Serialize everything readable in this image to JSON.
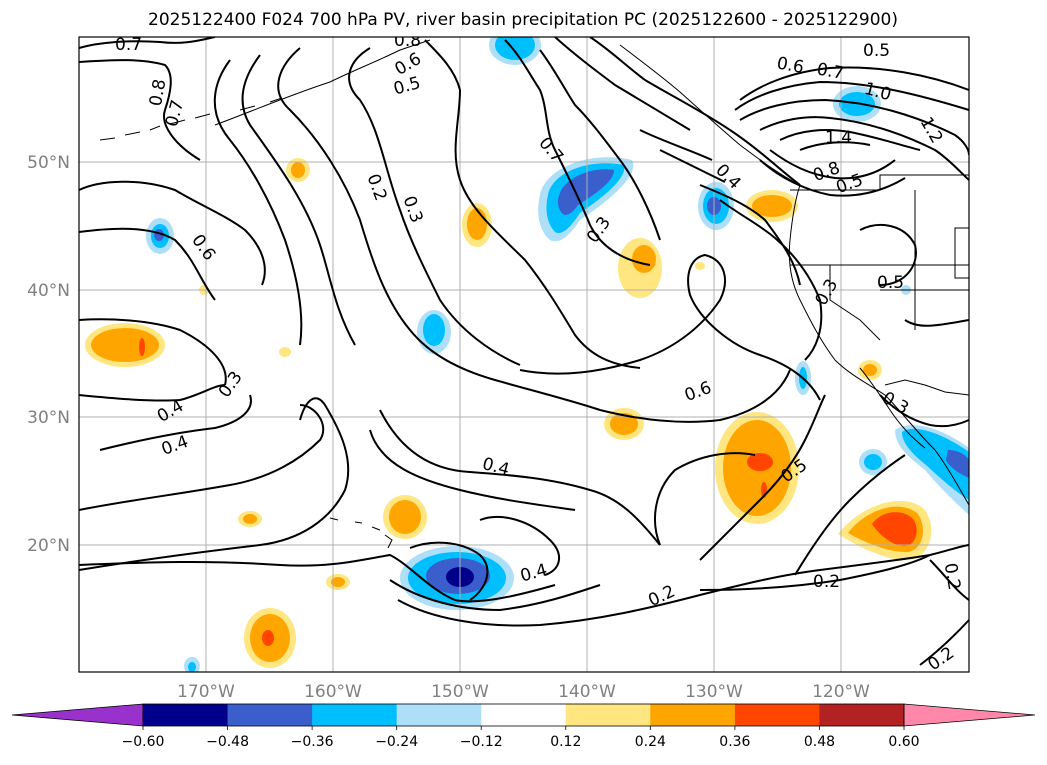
{
  "title": "2025122400 F024 700 hPa PV, river basin precipitation PC (2025122600 - 2025122900)",
  "lat_labels": [
    "50°N",
    "40°N",
    "30°N",
    "20°N"
  ],
  "lon_labels": [
    "170°W",
    "160°W",
    "150°W",
    "140°W",
    "130°W",
    "120°W"
  ],
  "contour_labels": [
    "0.7",
    "0.8",
    "0.7",
    "0.8",
    "0.6",
    "0.5",
    "0.6",
    "0.7",
    "1.0",
    "0.5",
    "1.4",
    "1.2",
    "0.8",
    "0.5",
    "0.2",
    "0.3",
    "0.7",
    "0.3",
    "0.4",
    "0.6",
    "0.3",
    "0.5",
    "0.3",
    "0.4",
    "0.4",
    "0.6",
    "0.3",
    "0.4",
    "0.5",
    "0.4",
    "0.2",
    "0.2",
    "0.2",
    "0.2"
  ],
  "colorbar": {
    "ticks": [
      "−0.60",
      "−0.48",
      "−0.36",
      "−0.24",
      "−0.12",
      "0.12",
      "0.24",
      "0.36",
      "0.48",
      "0.60"
    ],
    "colors": [
      "#9932CC",
      "#00008B",
      "#3A5FCD",
      "#00BFFF",
      "#ADDFF8",
      "#FFFFFF",
      "#FFE680",
      "#FFA500",
      "#FF4500",
      "#B22222",
      "#FF88AA"
    ]
  }
}
